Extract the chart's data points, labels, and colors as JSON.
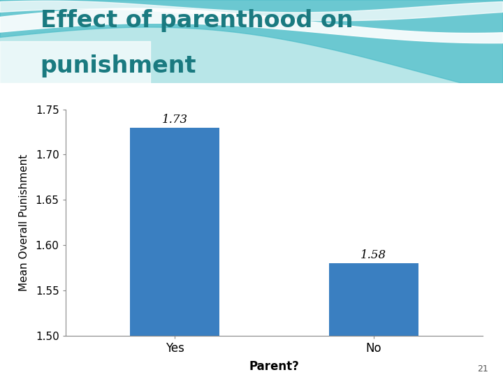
{
  "title_line1": "Effect of parenthood on",
  "title_line2": "punishment",
  "title_color": "#1a7a80",
  "categories": [
    "Yes",
    "No"
  ],
  "values": [
    1.73,
    1.58
  ],
  "bar_color": "#3a7fc1",
  "xlabel": "Parent?",
  "ylabel": "Mean Overall Punishment",
  "ylim": [
    1.5,
    1.75
  ],
  "yticks": [
    1.5,
    1.55,
    1.6,
    1.65,
    1.7,
    1.75
  ],
  "bar_labels": [
    "1.73",
    "1.58"
  ],
  "background_color": "#ffffff",
  "page_number": "21"
}
